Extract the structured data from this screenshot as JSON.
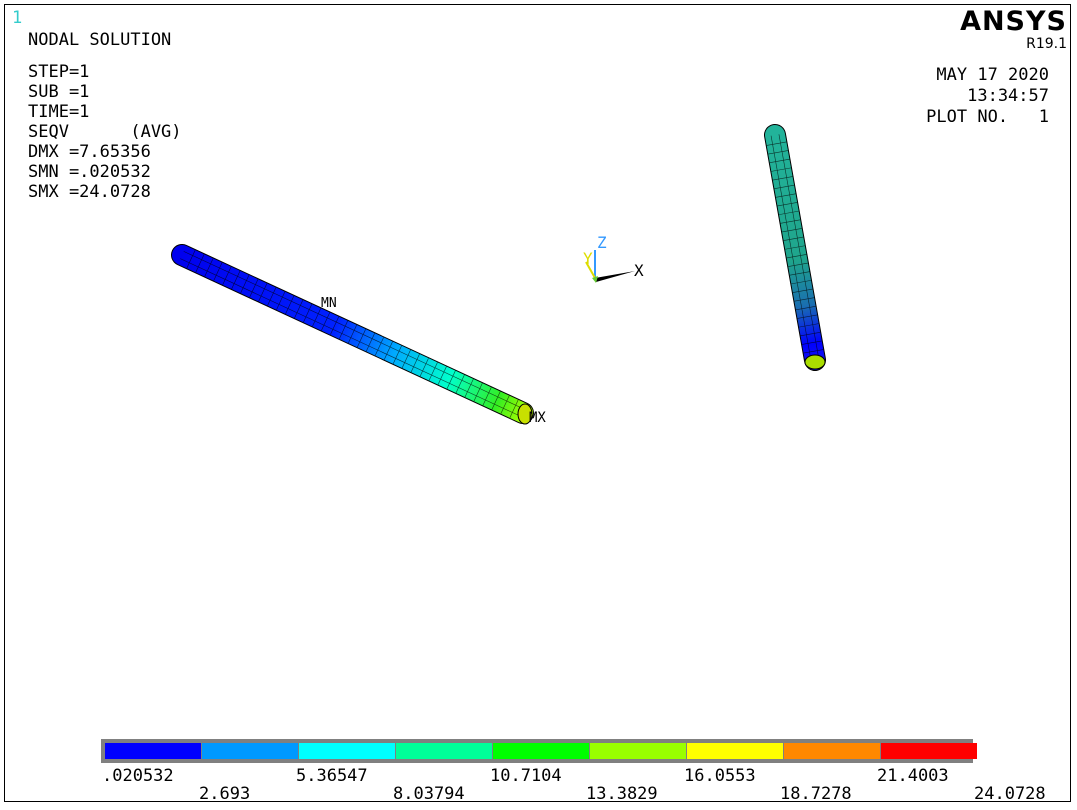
{
  "window_number": "1",
  "title": "NODAL SOLUTION",
  "info": [
    "STEP=1",
    "SUB =1",
    "TIME=1",
    "SEQV      (AVG)",
    "DMX =7.65356",
    "SMN =.020532",
    "SMX =24.0728"
  ],
  "brand": "ANSYS",
  "release": "R19.1",
  "date": "MAY 17 2020",
  "time": "13:34:57",
  "plot_no": "PLOT NO.   1",
  "markers": {
    "min": "MN",
    "max": "MX"
  },
  "triad": {
    "x": "X",
    "y": "Y",
    "z": "Z"
  },
  "legend": {
    "colors": [
      "#0000ff",
      "#0099ff",
      "#00ffff",
      "#00ff99",
      "#00ff00",
      "#99ff00",
      "#ffff00",
      "#ff8800",
      "#ff0000"
    ],
    "top_labels": [
      ".020532",
      "5.36547",
      "10.7104",
      "16.0553",
      "21.4003"
    ],
    "bottom_labels": [
      "2.693",
      "8.03794",
      "13.3829",
      "18.7278",
      "24.0728"
    ]
  }
}
